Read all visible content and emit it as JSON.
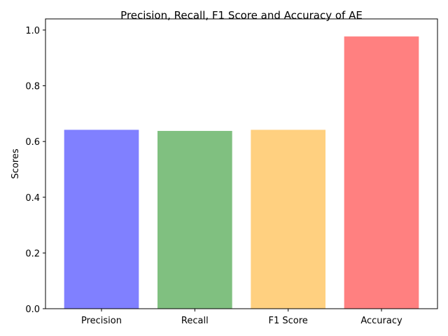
{
  "chart_data": {
    "type": "bar",
    "title": "Precision, Recall, F1 Score and Accuracy of AE",
    "xlabel": "",
    "ylabel": "Scores",
    "categories": [
      "Precision",
      "Recall",
      "F1 Score",
      "Accuracy"
    ],
    "values": [
      0.642,
      0.638,
      0.642,
      0.977
    ],
    "colors": [
      "#8080ff",
      "#80c080",
      "#ffd080",
      "#ff8080"
    ],
    "ylim": [
      0,
      1.0
    ],
    "yticks": [
      "0.0",
      "0.2",
      "0.4",
      "0.6",
      "0.8",
      "1.0"
    ],
    "grid": false,
    "legend": "none"
  }
}
